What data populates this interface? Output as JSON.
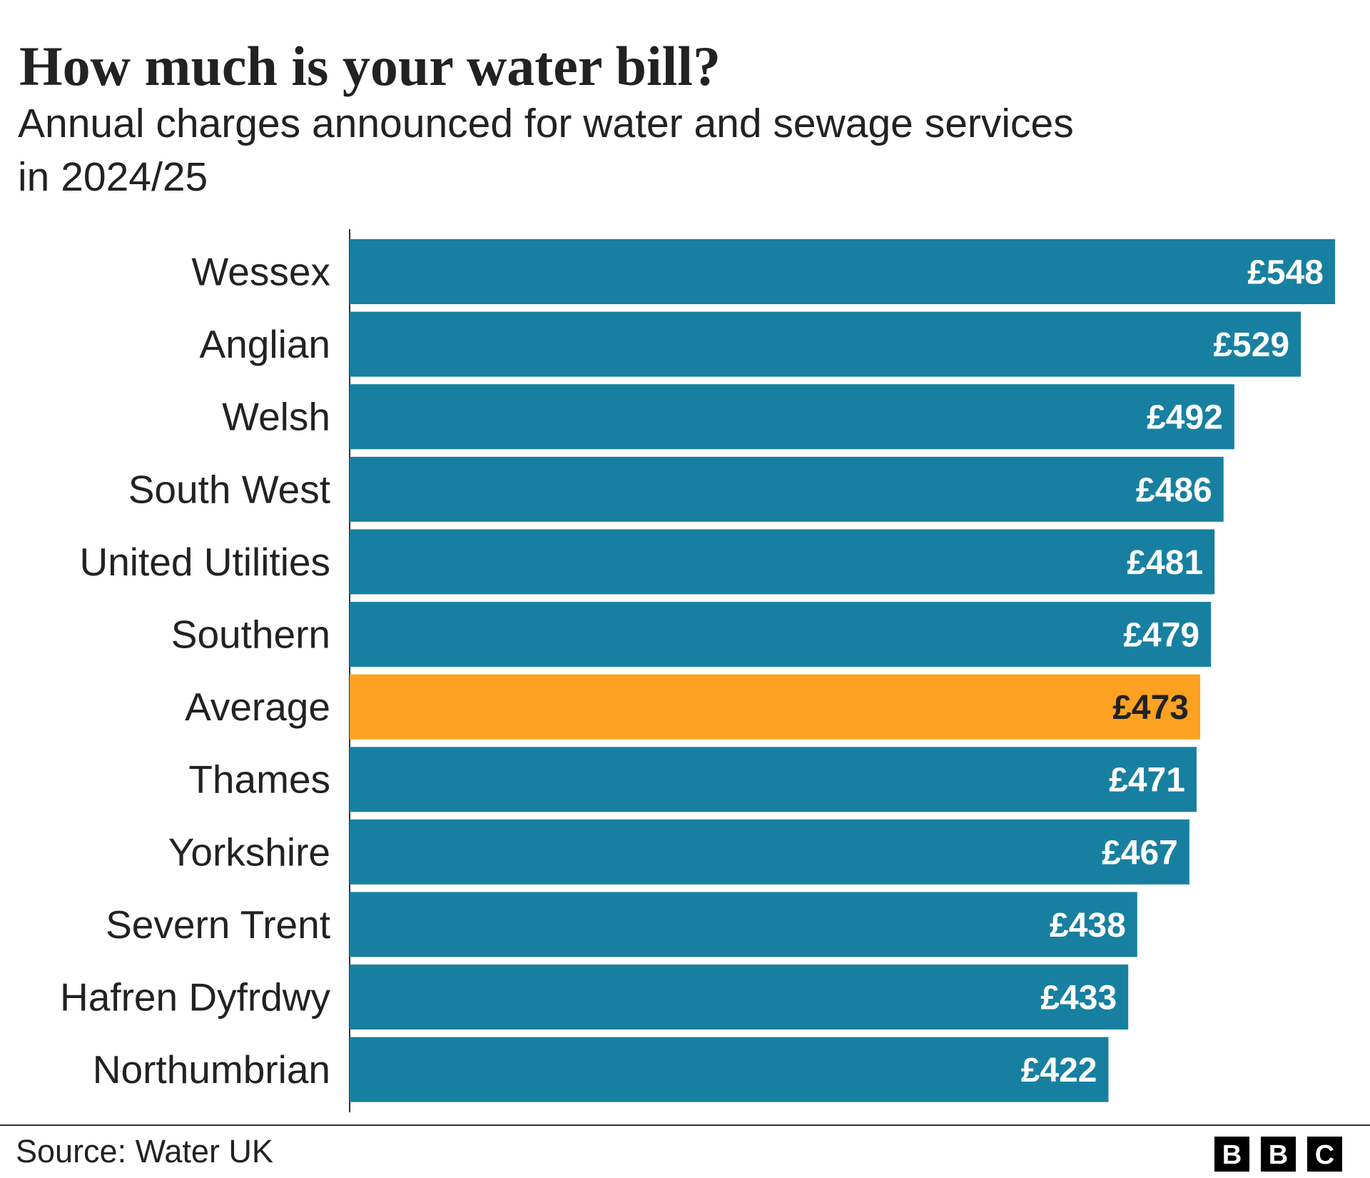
{
  "chart_data": {
    "type": "bar",
    "orientation": "horizontal",
    "title": "How much is your water bill?",
    "subtitle": [
      "Annual charges announced for water and sewage services",
      "in 2024/25"
    ],
    "categories": [
      "Wessex",
      "Anglian",
      "Welsh",
      "South West",
      "United Utilities",
      "Southern",
      "Average",
      "Thames",
      "Yorkshire",
      "Severn Trent",
      "Hafren Dyfrdwy",
      "Northumbrian"
    ],
    "values": [
      548,
      529,
      492,
      486,
      481,
      479,
      473,
      471,
      467,
      438,
      433,
      422
    ],
    "value_labels": [
      "£548",
      "£529",
      "£492",
      "£486",
      "£481",
      "£479",
      "£473",
      "£471",
      "£467",
      "£438",
      "£433",
      "£422"
    ],
    "colors": [
      "#1780a1",
      "#1780a1",
      "#1780a1",
      "#1780a1",
      "#1780a1",
      "#1780a1",
      "#fda220",
      "#1780a1",
      "#1780a1",
      "#1780a1",
      "#1780a1",
      "#1780a1"
    ],
    "source": "Source: Water UK",
    "logo": [
      "B",
      "B",
      "C"
    ]
  }
}
